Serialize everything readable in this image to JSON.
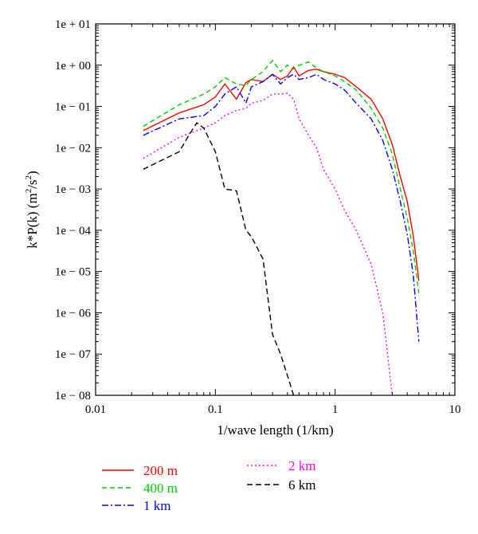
{
  "chart_data": {
    "type": "line",
    "xscale": "log",
    "yscale": "log",
    "xlim": [
      0.01,
      10
    ],
    "ylim": [
      1e-08,
      10
    ],
    "grid": false,
    "legend_position": "bottom",
    "xlabel": "1/wave length (1/km)",
    "ylabel_parts": {
      "main": "k*P(k) (m",
      "sup1": "2",
      "mid": "/s",
      "sup2": "2",
      "end": ")"
    },
    "x_tick_labels": [
      {
        "v": 0.01,
        "label": "0.01"
      },
      {
        "v": 0.1,
        "label": "0.1"
      },
      {
        "v": 1,
        "label": "1"
      },
      {
        "v": 10,
        "label": "10"
      }
    ],
    "y_tick_labels": [
      {
        "v": 10,
        "label": "1e + 01"
      },
      {
        "v": 1,
        "label": "1e + 00"
      },
      {
        "v": 0.1,
        "label": "1e − 01"
      },
      {
        "v": 0.01,
        "label": "1e − 02"
      },
      {
        "v": 0.001,
        "label": "1e − 03"
      },
      {
        "v": 0.0001,
        "label": "1e − 04"
      },
      {
        "v": 1e-05,
        "label": "1e − 05"
      },
      {
        "v": 1e-06,
        "label": "1e − 06"
      },
      {
        "v": 1e-07,
        "label": "1e − 07"
      },
      {
        "v": 1e-08,
        "label": "1e − 08"
      }
    ],
    "series": [
      {
        "name": "200 m",
        "color": "#ff0000",
        "dash": "solid",
        "points": [
          [
            0.025,
            0.026
          ],
          [
            0.05,
            0.07
          ],
          [
            0.08,
            0.11
          ],
          [
            0.1,
            0.17
          ],
          [
            0.12,
            0.35
          ],
          [
            0.15,
            0.15
          ],
          [
            0.18,
            0.38
          ],
          [
            0.2,
            0.45
          ],
          [
            0.25,
            0.4
          ],
          [
            0.3,
            0.6
          ],
          [
            0.35,
            0.45
          ],
          [
            0.4,
            0.55
          ],
          [
            0.45,
            0.9
          ],
          [
            0.5,
            0.55
          ],
          [
            0.6,
            0.75
          ],
          [
            0.7,
            0.8
          ],
          [
            0.8,
            0.7
          ],
          [
            1.0,
            0.6
          ],
          [
            1.2,
            0.5
          ],
          [
            1.5,
            0.3
          ],
          [
            2.0,
            0.15
          ],
          [
            2.5,
            0.05
          ],
          [
            3.0,
            0.012
          ],
          [
            3.5,
            0.002
          ],
          [
            4.0,
            0.0005
          ],
          [
            4.5,
            7e-05
          ],
          [
            5.0,
            6e-06
          ]
        ]
      },
      {
        "name": "400 m",
        "color": "#00cc00",
        "dash": "6,4",
        "points": [
          [
            0.025,
            0.033
          ],
          [
            0.05,
            0.11
          ],
          [
            0.08,
            0.2
          ],
          [
            0.1,
            0.3
          ],
          [
            0.12,
            0.5
          ],
          [
            0.15,
            0.35
          ],
          [
            0.18,
            0.32
          ],
          [
            0.2,
            0.45
          ],
          [
            0.25,
            0.7
          ],
          [
            0.3,
            1.3
          ],
          [
            0.35,
            0.7
          ],
          [
            0.4,
            1.0
          ],
          [
            0.45,
            0.8
          ],
          [
            0.5,
            1.0
          ],
          [
            0.6,
            1.2
          ],
          [
            0.7,
            0.85
          ],
          [
            0.8,
            0.7
          ],
          [
            1.0,
            0.55
          ],
          [
            1.2,
            0.4
          ],
          [
            1.5,
            0.25
          ],
          [
            2.0,
            0.09
          ],
          [
            2.5,
            0.03
          ],
          [
            3.0,
            0.007
          ],
          [
            3.5,
            0.001
          ],
          [
            4.0,
            0.0002
          ],
          [
            4.5,
            3e-05
          ],
          [
            5.0,
            3e-06
          ]
        ]
      },
      {
        "name": "1 km",
        "color": "#0000ff",
        "dash": "8,3,2,3",
        "points": [
          [
            0.025,
            0.02
          ],
          [
            0.05,
            0.05
          ],
          [
            0.08,
            0.06
          ],
          [
            0.1,
            0.1
          ],
          [
            0.12,
            0.2
          ],
          [
            0.15,
            0.3
          ],
          [
            0.18,
            0.12
          ],
          [
            0.2,
            0.3
          ],
          [
            0.25,
            0.4
          ],
          [
            0.3,
            0.6
          ],
          [
            0.35,
            0.35
          ],
          [
            0.4,
            0.5
          ],
          [
            0.45,
            0.6
          ],
          [
            0.5,
            0.45
          ],
          [
            0.6,
            0.5
          ],
          [
            0.7,
            0.6
          ],
          [
            0.8,
            0.45
          ],
          [
            1.0,
            0.35
          ],
          [
            1.2,
            0.25
          ],
          [
            1.5,
            0.12
          ],
          [
            2.0,
            0.05
          ],
          [
            2.5,
            0.015
          ],
          [
            3.0,
            0.003
          ],
          [
            3.5,
            0.0005
          ],
          [
            4.0,
            8e-05
          ],
          [
            4.5,
            8e-06
          ],
          [
            5.0,
            2e-07
          ]
        ]
      },
      {
        "name": "2 km",
        "color": "#ff00ff",
        "dash": "2,3",
        "points": [
          [
            0.025,
            0.0055
          ],
          [
            0.05,
            0.018
          ],
          [
            0.08,
            0.03
          ],
          [
            0.1,
            0.04
          ],
          [
            0.12,
            0.06
          ],
          [
            0.15,
            0.08
          ],
          [
            0.18,
            0.09
          ],
          [
            0.2,
            0.12
          ],
          [
            0.25,
            0.14
          ],
          [
            0.3,
            0.2
          ],
          [
            0.35,
            0.2
          ],
          [
            0.4,
            0.21
          ],
          [
            0.45,
            0.15
          ],
          [
            0.5,
            0.05
          ],
          [
            0.6,
            0.02
          ],
          [
            0.7,
            0.01
          ],
          [
            0.8,
            0.003
          ],
          [
            1.0,
            0.001
          ],
          [
            1.2,
            0.0003
          ],
          [
            1.5,
            0.0001
          ],
          [
            2.0,
            1.5e-05
          ],
          [
            2.5,
            1e-06
          ],
          [
            3.0,
            1e-08
          ]
        ]
      },
      {
        "name": "6 km",
        "color": "#000000",
        "dash": "7,4",
        "points": [
          [
            0.025,
            0.003
          ],
          [
            0.05,
            0.008
          ],
          [
            0.06,
            0.02
          ],
          [
            0.07,
            0.04
          ],
          [
            0.08,
            0.03
          ],
          [
            0.1,
            0.008
          ],
          [
            0.12,
            0.001
          ],
          [
            0.15,
            0.0009
          ],
          [
            0.18,
            0.0001
          ],
          [
            0.2,
            7e-05
          ],
          [
            0.25,
            2e-05
          ],
          [
            0.3,
            3e-07
          ],
          [
            0.35,
            1e-07
          ],
          [
            0.4,
            3e-08
          ],
          [
            0.45,
            1e-08
          ],
          [
            0.5,
            8e-09
          ]
        ]
      }
    ]
  }
}
